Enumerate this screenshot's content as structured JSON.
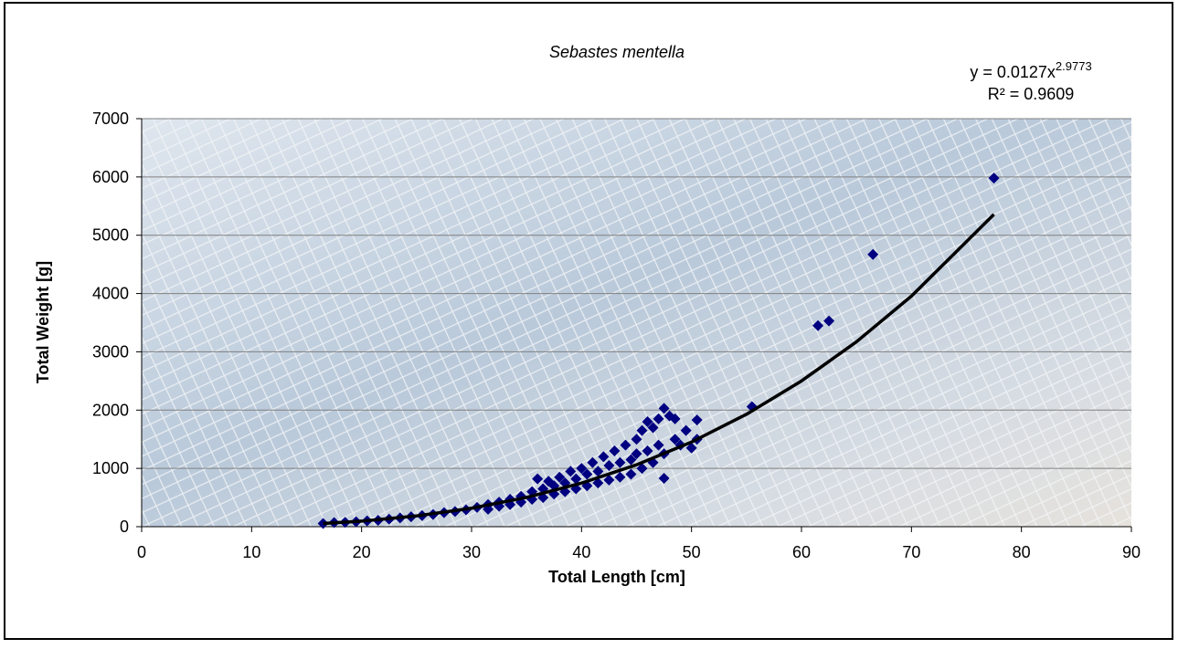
{
  "chart_data": {
    "type": "scatter",
    "title": "Sebastes mentella",
    "x_label": "Total Length [cm]",
    "y_label": "Total Weight [g]",
    "xlim": [
      0,
      90
    ],
    "xticks": [
      0,
      10,
      20,
      30,
      40,
      50,
      60,
      70,
      80,
      90
    ],
    "ylim": [
      0,
      7000
    ],
    "yticks": [
      0,
      1000,
      2000,
      3000,
      4000,
      5000,
      6000,
      7000
    ],
    "grid": true,
    "series": [
      {
        "color": "#000080",
        "marker": "diamond",
        "x": [
          16.5,
          17.5,
          18.5,
          19.5,
          20.5,
          21.5,
          22.5,
          23.5,
          24.5,
          25.5,
          26.5,
          27.5,
          28.5,
          29.5,
          30.5,
          31.5,
          31.5,
          32.5,
          32.5,
          33.5,
          33.5,
          34.5,
          34.5,
          35.5,
          35.5,
          36,
          36.5,
          36.5,
          37,
          37.5,
          37.5,
          38,
          38.5,
          38.5,
          39,
          39.5,
          39.5,
          40,
          40.5,
          40.5,
          41,
          41.5,
          41.5,
          42,
          42.5,
          42.5,
          43,
          43.5,
          43.5,
          44,
          44.5,
          44.5,
          45,
          45,
          45.5,
          45.5,
          46,
          46,
          46.5,
          46.5,
          47,
          47,
          47.5,
          47.5,
          47.5,
          48,
          48.5,
          48.5,
          49,
          49.5,
          50,
          50.5,
          50.5,
          55.5,
          61.5,
          62.5,
          66.5,
          77.5
        ],
        "values": [
          55,
          70,
          75,
          85,
          100,
          110,
          130,
          150,
          170,
          190,
          210,
          240,
          260,
          290,
          330,
          380,
          300,
          420,
          350,
          470,
          380,
          520,
          420,
          600,
          470,
          820,
          650,
          500,
          780,
          700,
          560,
          850,
          750,
          600,
          950,
          820,
          650,
          1000,
          900,
          700,
          1100,
          950,
          750,
          1200,
          1050,
          800,
          1300,
          1100,
          850,
          1400,
          1150,
          900,
          1500,
          1250,
          1650,
          1000,
          1800,
          1300,
          1700,
          1100,
          1850,
          1400,
          2030,
          1250,
          830,
          1900,
          1850,
          1500,
          1400,
          1650,
          1350,
          1830,
          1500,
          2060,
          3450,
          3530,
          4670,
          5980
        ]
      }
    ],
    "trendline": {
      "color": "#000000",
      "x": [
        16.5,
        20,
        25,
        30,
        35,
        40,
        45,
        50,
        55,
        60,
        65,
        70,
        77.5
      ],
      "values": [
        54,
        95,
        185,
        317,
        502,
        748,
        1062,
        1452,
        1929,
        2500,
        3172,
        3956,
        5357
      ],
      "equation": "y = 0.0127x",
      "exponent": "2.9773",
      "r_squared": "R² = 0.9609"
    }
  }
}
